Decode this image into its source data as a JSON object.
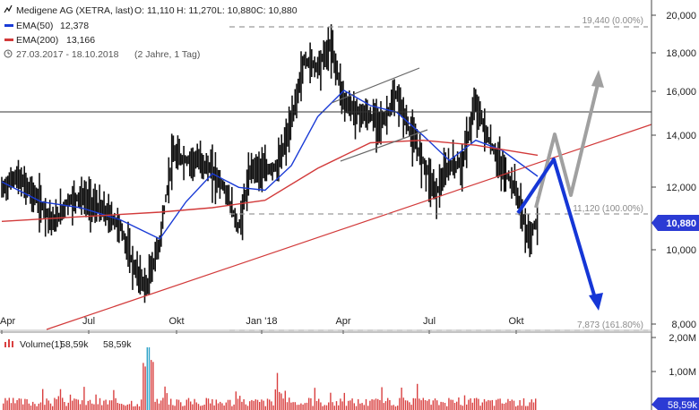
{
  "chart_data": {
    "type": "line",
    "instrument": "Medigene AG (XETRA, last)",
    "ohlc_labels": {
      "open": "O: 11,110",
      "high": "H: 11,270",
      "low": "L: 10,880",
      "close": "C: 10,880"
    },
    "date_range": "27.03.2017 - 18.10.2018",
    "period": "(2 Jahre, 1 Tag)",
    "x_tick_labels": [
      "Apr",
      "Jul",
      "Okt",
      "Jan '18",
      "Apr",
      "Jul",
      "Okt"
    ],
    "y_tick_labels": [
      "20,000",
      "18,000",
      "16,000",
      "14,000",
      "12,000",
      "10,000",
      "8,000"
    ],
    "y_ticks": [
      20,
      18,
      16,
      14,
      12,
      10,
      8
    ],
    "y_scale": "log",
    "ylim": [
      7.8,
      20.6
    ],
    "last_price": 10.88,
    "last_price_label": "10,880",
    "series": [
      {
        "name": "Medigene AG",
        "color": "#111111",
        "style": "daily bars",
        "x": [
          "2017-03-27",
          "2017-04-10",
          "2017-04-24",
          "2017-05-08",
          "2017-05-22",
          "2017-06-05",
          "2017-06-19",
          "2017-07-03",
          "2017-07-17",
          "2017-07-31",
          "2017-08-14",
          "2017-08-28",
          "2017-09-11",
          "2017-09-25",
          "2017-10-09",
          "2017-10-23",
          "2017-11-06",
          "2017-11-20",
          "2017-12-04",
          "2017-12-18",
          "2018-01-01",
          "2018-01-15",
          "2018-01-29",
          "2018-02-12",
          "2018-02-26",
          "2018-03-12",
          "2018-03-26",
          "2018-04-09",
          "2018-04-23",
          "2018-05-07",
          "2018-05-21",
          "2018-06-04",
          "2018-06-18",
          "2018-07-02",
          "2018-07-16",
          "2018-07-30",
          "2018-08-13",
          "2018-08-27",
          "2018-09-10",
          "2018-09-24",
          "2018-10-08",
          "2018-10-18"
        ],
        "values": [
          11.9,
          12.4,
          12.0,
          11.4,
          10.8,
          11.5,
          11.7,
          11.4,
          11.1,
          10.7,
          9.5,
          8.9,
          10.2,
          13.2,
          13.0,
          13.0,
          12.6,
          11.9,
          10.6,
          12.8,
          12.6,
          12.8,
          14.5,
          17.5,
          17.2,
          18.3,
          15.5,
          15.0,
          14.8,
          14.6,
          15.8,
          14.2,
          13.0,
          11.8,
          12.8,
          12.9,
          15.4,
          13.8,
          12.7,
          12.0,
          10.3,
          10.9
        ]
      },
      {
        "name": "EMA(50)",
        "legend_value": "12,378",
        "color": "#1a3bd6",
        "x": [
          "2017-03-27",
          "2017-05-08",
          "2017-06-19",
          "2017-07-31",
          "2017-09-11",
          "2017-10-09",
          "2017-11-06",
          "2017-12-04",
          "2018-01-01",
          "2018-01-29",
          "2018-02-26",
          "2018-03-26",
          "2018-04-23",
          "2018-05-21",
          "2018-06-18",
          "2018-07-16",
          "2018-08-13",
          "2018-09-10",
          "2018-10-18"
        ],
        "values": [
          12.2,
          11.5,
          11.3,
          10.9,
          10.3,
          11.5,
          12.5,
          12.0,
          11.9,
          12.8,
          14.8,
          16.0,
          15.3,
          15.0,
          14.0,
          13.0,
          13.8,
          13.4,
          12.4
        ]
      },
      {
        "name": "EMA(200)",
        "legend_value": "13,166",
        "color": "#d23a3a",
        "x": [
          "2017-03-27",
          "2017-06-19",
          "2017-09-11",
          "2017-11-06",
          "2018-01-01",
          "2018-02-26",
          "2018-04-23",
          "2018-06-18",
          "2018-08-13",
          "2018-10-18"
        ],
        "values": [
          10.85,
          11.0,
          11.15,
          11.3,
          11.55,
          12.7,
          13.7,
          13.8,
          13.6,
          13.2
        ]
      }
    ],
    "volume": {
      "legend": "Volume(1)",
      "legend_value_1": "58,59k",
      "legend_value_2": "58,59k",
      "axis_labels": [
        "2,00M",
        "1,00M"
      ],
      "last_label": "58,59k"
    },
    "annotations": {
      "fib_top": "19,440 (0.00%)",
      "fib_mid": "11,120 (100.00%)",
      "fib_bottom": "7,873 (161.80%)"
    },
    "colors": {
      "price_bars": "#111111",
      "ema50": "#1a3bd6",
      "ema200": "#d23a3a",
      "forecast_bear": "#1536d6",
      "forecast_bull": "#a0a0a0",
      "volume_bars": "#d94040",
      "volume_highlight": "#2fa3c8",
      "fib_lines": "#a0a0a0",
      "last_price_box": "#2b3bd4",
      "volume_box": "#2b3bd4"
    }
  }
}
